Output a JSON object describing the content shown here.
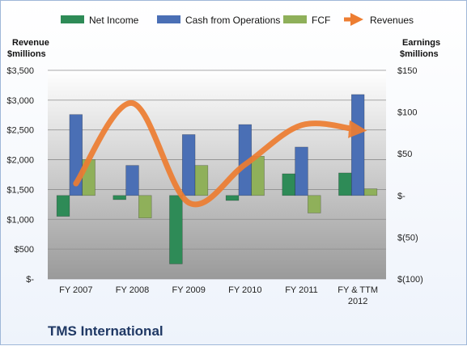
{
  "company": "TMS International",
  "chart_data": {
    "type": "bar",
    "categories": [
      "FY 2007",
      "FY 2008",
      "FY 2009",
      "FY 2010",
      "FY 2011",
      "FY & TTM 2012"
    ],
    "left_axis": {
      "label_line1": "Revenue",
      "label_line2": "$millions",
      "range": [
        0,
        3500
      ],
      "ticks": [
        "$-",
        "$500",
        "$1,000",
        "$1,500",
        "$2,000",
        "$2,500",
        "$3,000",
        "$3,500"
      ],
      "tick_values": [
        0,
        500,
        1000,
        1500,
        2000,
        2500,
        3000,
        3500
      ]
    },
    "right_axis": {
      "label_line1": "Earnings",
      "label_line2": "$millions",
      "range": [
        -100,
        150
      ],
      "ticks": [
        "$(100)",
        "$(50)",
        "$-",
        "$50",
        "$100",
        "$150"
      ],
      "tick_values": [
        -100,
        -50,
        0,
        50,
        100,
        150
      ]
    },
    "series": [
      {
        "name": "Net Income",
        "type": "bar",
        "axis": "right",
        "color": "#2e8b57",
        "values": [
          -25,
          -5,
          -82,
          -6,
          26,
          27
        ]
      },
      {
        "name": "Cash from Operations",
        "type": "bar",
        "axis": "right",
        "color": "#4a6fb5",
        "values": [
          97,
          36,
          73,
          85,
          58,
          121
        ]
      },
      {
        "name": "FCF",
        "type": "bar",
        "axis": "right",
        "color": "#8fb05a",
        "values": [
          43,
          -27,
          36,
          47,
          -21,
          8
        ]
      },
      {
        "name": "Revenues",
        "type": "line",
        "axis": "left",
        "color": "#ed7d31",
        "values": [
          1600,
          2950,
          1280,
          1920,
          2580,
          2500
        ]
      }
    ],
    "legend_position": "top",
    "grid": true
  }
}
